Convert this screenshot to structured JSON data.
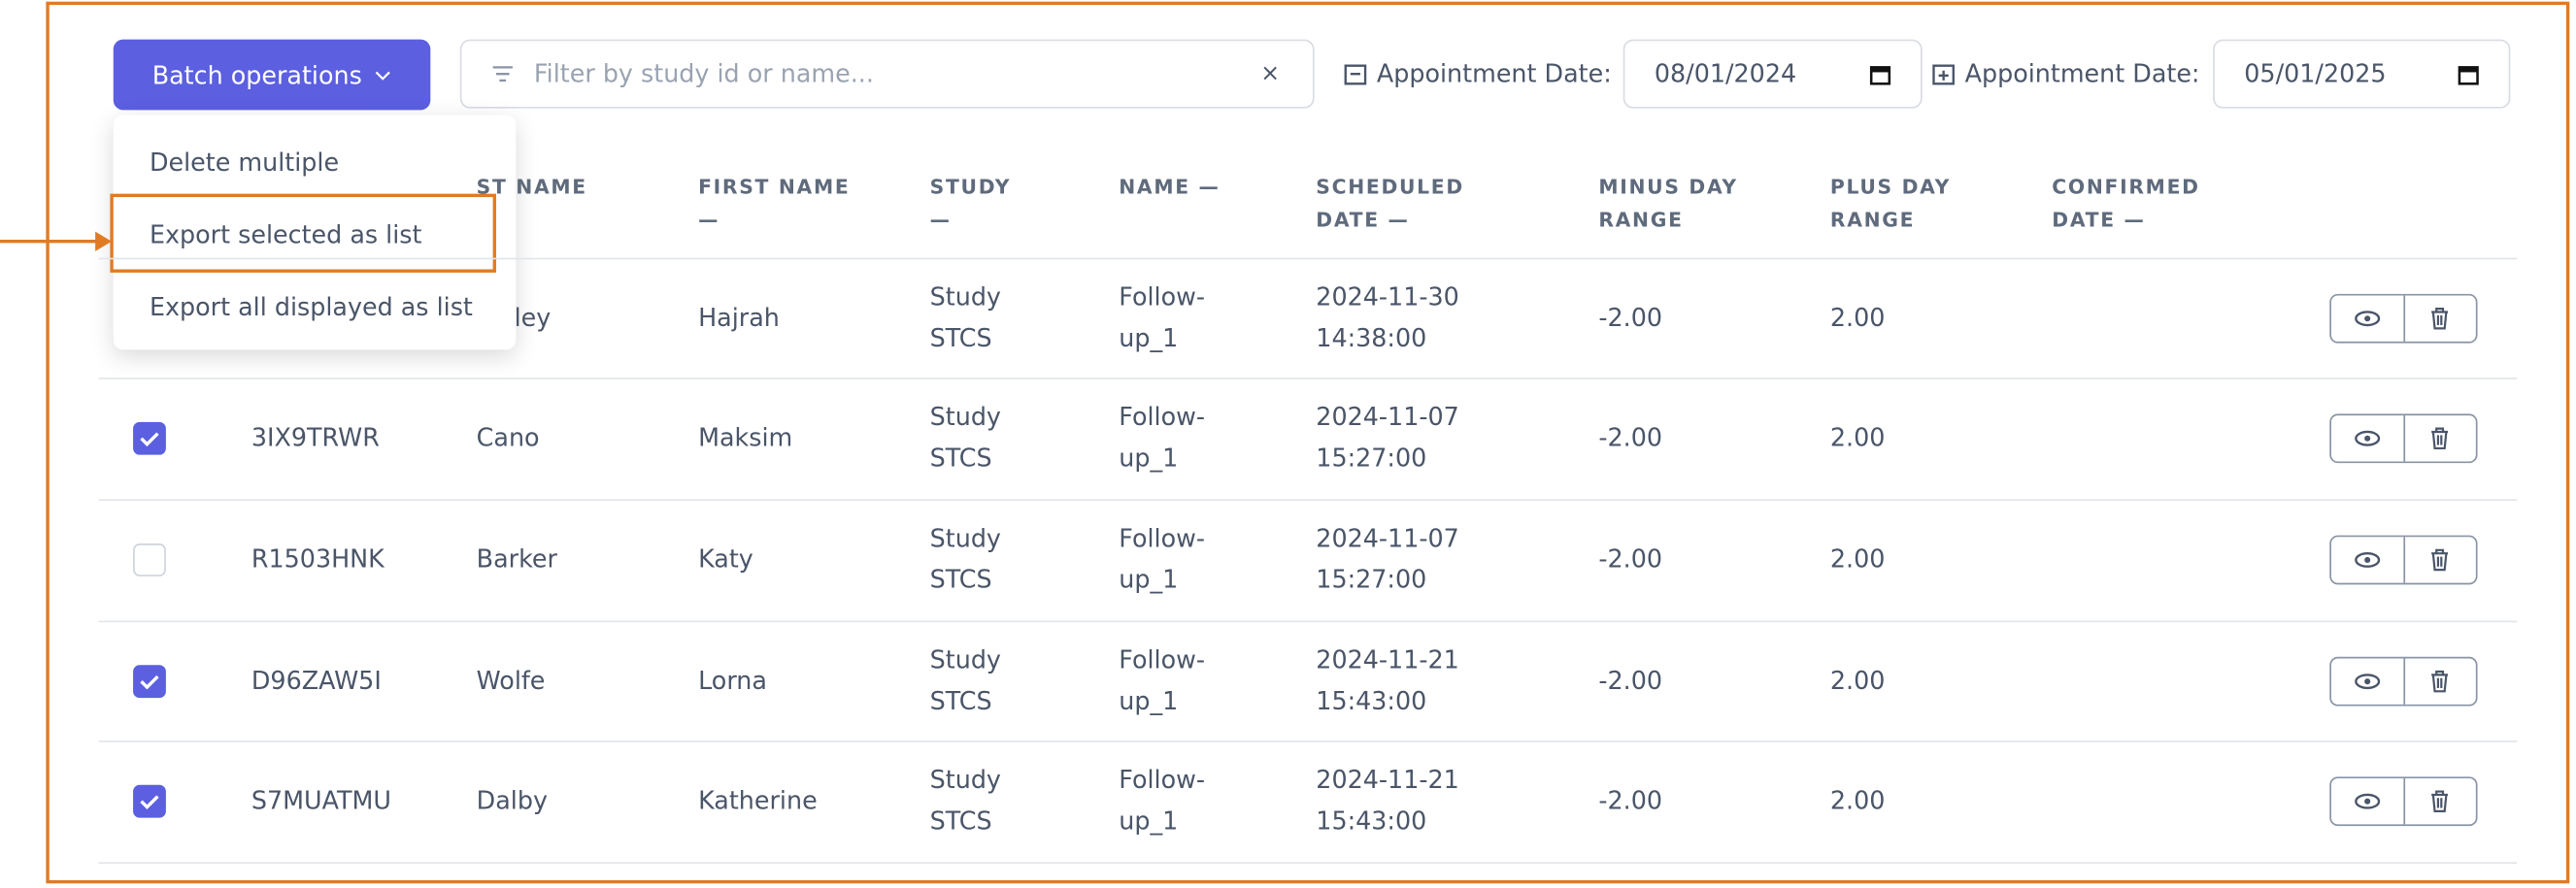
{
  "toolbar": {
    "batch_button": "Batch operations",
    "filter_placeholder": "Filter by study id or name...",
    "date_from_label": "Appointment Date:",
    "date_from": "08/01/2024",
    "date_to_label": "Appointment Date:",
    "date_to": "05/01/2025"
  },
  "dropdown": {
    "items": [
      "Delete multiple",
      "Export selected as list",
      "Export all displayed as list"
    ],
    "highlighted": 1
  },
  "table": {
    "headers": [
      "ST NAME",
      "FIRST NAME —",
      "STUDY —",
      "NAME —",
      "SCHEDULED DATE —",
      "MINUS DAY RANGE",
      "PLUS DAY RANGE",
      "CONFIRMED DATE —"
    ],
    "rows": [
      {
        "checked": null,
        "id": "",
        "last": "ley",
        "first": "Hajrah",
        "study": "Study STCS",
        "name": "Follow-up_1",
        "scheduled": "2024-11-30 14:38:00",
        "minus": "-2.00",
        "plus": "2.00"
      },
      {
        "checked": true,
        "id": "3IX9TRWR",
        "last": "Cano",
        "first": "Maksim",
        "study": "Study STCS",
        "name": "Follow-up_1",
        "scheduled": "2024-11-07 15:27:00",
        "minus": "-2.00",
        "plus": "2.00"
      },
      {
        "checked": false,
        "id": "R1503HNK",
        "last": "Barker",
        "first": "Katy",
        "study": "Study STCS",
        "name": "Follow-up_1",
        "scheduled": "2024-11-07 15:27:00",
        "minus": "-2.00",
        "plus": "2.00"
      },
      {
        "checked": true,
        "id": "D96ZAW5I",
        "last": "Wolfe",
        "first": "Lorna",
        "study": "Study STCS",
        "name": "Follow-up_1",
        "scheduled": "2024-11-21 15:43:00",
        "minus": "-2.00",
        "plus": "2.00"
      },
      {
        "checked": true,
        "id": "S7MUATMU",
        "last": "Dalby",
        "first": "Katherine",
        "study": "Study STCS",
        "name": "Follow-up_1",
        "scheduled": "2024-11-21 15:43:00",
        "minus": "-2.00",
        "plus": "2.00"
      }
    ]
  }
}
